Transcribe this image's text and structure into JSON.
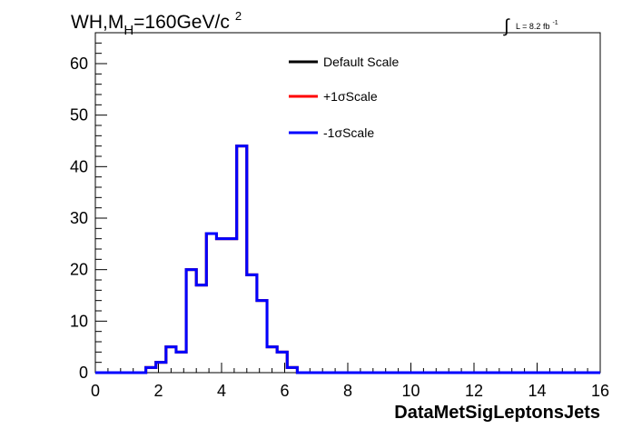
{
  "chart_data": {
    "type": "histogram-step",
    "title": {
      "main": "WH,M",
      "subscript": "H",
      "rest": "=160GeV/c",
      "superscript": "2"
    },
    "lumi_label": {
      "integral_sign": "∫",
      "text": "L = 8.2 fb",
      "superscript": "-1"
    },
    "xlabel": "DataMetSigLeptonsJets",
    "ylabel": "",
    "xlim": [
      0,
      16
    ],
    "ylim": [
      0,
      66
    ],
    "xticks": [
      "0",
      "2",
      "4",
      "6",
      "8",
      "10",
      "12",
      "14",
      "16"
    ],
    "yticks": [
      "0",
      "10",
      "20",
      "30",
      "40",
      "50",
      "60"
    ],
    "bin_width": 0.32,
    "bin_start": 0,
    "legend_position": "top-center",
    "series": [
      {
        "name": "Default Scale",
        "color": "#000000",
        "values": [
          0,
          0,
          0,
          0,
          0,
          1,
          2,
          5,
          4,
          20,
          17,
          27,
          26,
          26,
          44,
          19,
          14,
          5,
          4,
          1,
          0,
          0,
          0,
          0,
          0,
          0,
          0,
          0,
          0,
          0,
          0,
          0,
          0,
          0,
          0,
          0,
          0,
          0,
          0,
          0,
          0,
          0,
          0,
          0,
          0,
          0,
          0,
          0,
          0,
          0
        ]
      },
      {
        "name": "+1σScale",
        "color": "#ff0000",
        "values": [
          0,
          0,
          0,
          0,
          0,
          1,
          2,
          5,
          4,
          20,
          17,
          27,
          26,
          26,
          44,
          19,
          14,
          5,
          4,
          1,
          0,
          0,
          0,
          0,
          0,
          0,
          0,
          0,
          0,
          0,
          0,
          0,
          0,
          0,
          0,
          0,
          0,
          0,
          0,
          0,
          0,
          0,
          0,
          0,
          0,
          0,
          0,
          0,
          0,
          0
        ]
      },
      {
        "name": "-1σScale",
        "color": "#0000ff",
        "values": [
          0,
          0,
          0,
          0,
          0,
          1,
          2,
          5,
          4,
          20,
          17,
          27,
          26,
          26,
          44,
          19,
          14,
          5,
          4,
          1,
          0,
          0,
          0,
          0,
          0,
          0,
          0,
          0,
          0,
          0,
          0,
          0,
          0,
          0,
          0,
          0,
          0,
          0,
          0,
          0,
          0,
          0,
          0,
          0,
          0,
          0,
          0,
          0,
          0,
          0
        ]
      }
    ]
  }
}
